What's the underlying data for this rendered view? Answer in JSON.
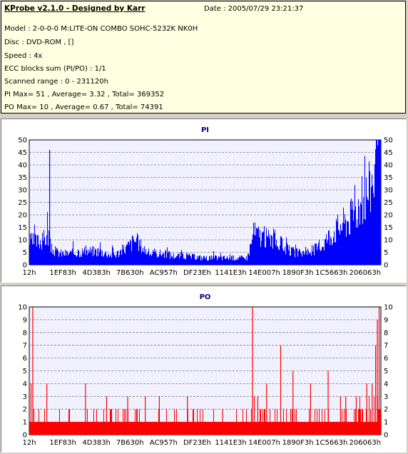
{
  "info": {
    "title": "KProbe v2.1.0 - Designed by Karr",
    "date": "Date : 2005/07/29 23:21:37",
    "lines": [
      "Model : 2-0-0-0 M:LITE-ON COMBO SOHC-5232K NK0H",
      "Disc : DVD-ROM ,  []",
      "Speed : 4x",
      "ECC blocks sum (PI/PO) : 1/1",
      "Scanned range : 0 - 231120h",
      "PI Max= 51 , Average= 3.32 , Total= 369352",
      "PO Max= 10 , Average= 0.67 , Total= 74391"
    ]
  },
  "colors": {
    "plot_bg": "#f0f0ff",
    "grid": "#808080",
    "pi": "#0000ff",
    "po": "#ff0000",
    "title": "#000080"
  },
  "chart_data": [
    {
      "type": "bar",
      "title": "PI",
      "xlabel": "",
      "ylabel": "",
      "ylim": [
        0,
        50
      ],
      "yticks": [
        0,
        5,
        10,
        15,
        20,
        25,
        30,
        35,
        40,
        45,
        50
      ],
      "xticks": [
        "12h",
        "1EF83h",
        "4D383h",
        "7B630h",
        "AC957h",
        "DF23Eh",
        "1141E3h",
        "14E007h",
        "1890F3h",
        "1C5663h",
        "206063h"
      ],
      "xrange_hex": [
        "0",
        "231120"
      ],
      "grid": true,
      "color": "#0000ff",
      "series": [
        {
          "x_frac": [
            0.0,
            0.02,
            0.04,
            0.055,
            0.06,
            0.07,
            0.09,
            0.12,
            0.16,
            0.2,
            0.24,
            0.28,
            0.3,
            0.34,
            0.38,
            0.41,
            0.44,
            0.5,
            0.56,
            0.6,
            0.62,
            0.64,
            0.67,
            0.7,
            0.74,
            0.77,
            0.8,
            0.83,
            0.85,
            0.87,
            0.89,
            0.91,
            0.93,
            0.95,
            0.97,
            0.985,
            1.0
          ],
          "values": [
            10,
            10,
            11,
            13,
            7,
            6,
            5,
            5,
            6,
            6,
            4,
            8,
            11,
            5,
            5,
            4,
            4,
            3,
            3,
            3,
            3,
            14,
            12,
            11,
            6,
            5,
            6,
            8,
            12,
            15,
            18,
            20,
            24,
            28,
            34,
            42,
            51
          ],
          "spikes": [
            {
              "x_frac": 0.058,
              "value": 46
            }
          ]
        }
      ]
    },
    {
      "type": "bar",
      "title": "PO",
      "xlabel": "",
      "ylabel": "",
      "ylim": [
        0,
        10
      ],
      "yticks": [
        0,
        1,
        2,
        3,
        4,
        5,
        6,
        7,
        8,
        9,
        10
      ],
      "xticks": [
        "12h",
        "1EF83h",
        "4D383h",
        "7B630h",
        "AC957h",
        "DF23Eh",
        "1141E3h",
        "14E007h",
        "1890F3h",
        "1C5663h",
        "206063h"
      ],
      "xrange_hex": [
        "0",
        "231120"
      ],
      "grid": true,
      "color": "#ff0000",
      "series": [
        {
          "baseline": 1,
          "spikes": [
            {
              "x_frac": 0.01,
              "value": 10
            },
            {
              "x_frac": 0.005,
              "value": 4
            },
            {
              "x_frac": 0.05,
              "value": 4
            },
            {
              "x_frac": 0.16,
              "value": 4
            },
            {
              "x_frac": 0.22,
              "value": 3
            },
            {
              "x_frac": 0.28,
              "value": 3
            },
            {
              "x_frac": 0.33,
              "value": 3
            },
            {
              "x_frac": 0.37,
              "value": 3
            },
            {
              "x_frac": 0.45,
              "value": 3
            },
            {
              "x_frac": 0.55,
              "value": 2
            },
            {
              "x_frac": 0.635,
              "value": 10
            },
            {
              "x_frac": 0.64,
              "value": 3
            },
            {
              "x_frac": 0.65,
              "value": 3
            },
            {
              "x_frac": 0.675,
              "value": 4
            },
            {
              "x_frac": 0.715,
              "value": 7
            },
            {
              "x_frac": 0.75,
              "value": 5
            },
            {
              "x_frac": 0.8,
              "value": 4
            },
            {
              "x_frac": 0.85,
              "value": 5
            },
            {
              "x_frac": 0.885,
              "value": 3
            },
            {
              "x_frac": 0.9,
              "value": 3
            },
            {
              "x_frac": 0.93,
              "value": 3
            },
            {
              "x_frac": 0.96,
              "value": 4
            },
            {
              "x_frac": 0.975,
              "value": 4
            },
            {
              "x_frac": 0.985,
              "value": 7
            },
            {
              "x_frac": 0.99,
              "value": 9
            },
            {
              "x_frac": 0.995,
              "value": 10
            }
          ],
          "seed": 7
        }
      ]
    }
  ]
}
